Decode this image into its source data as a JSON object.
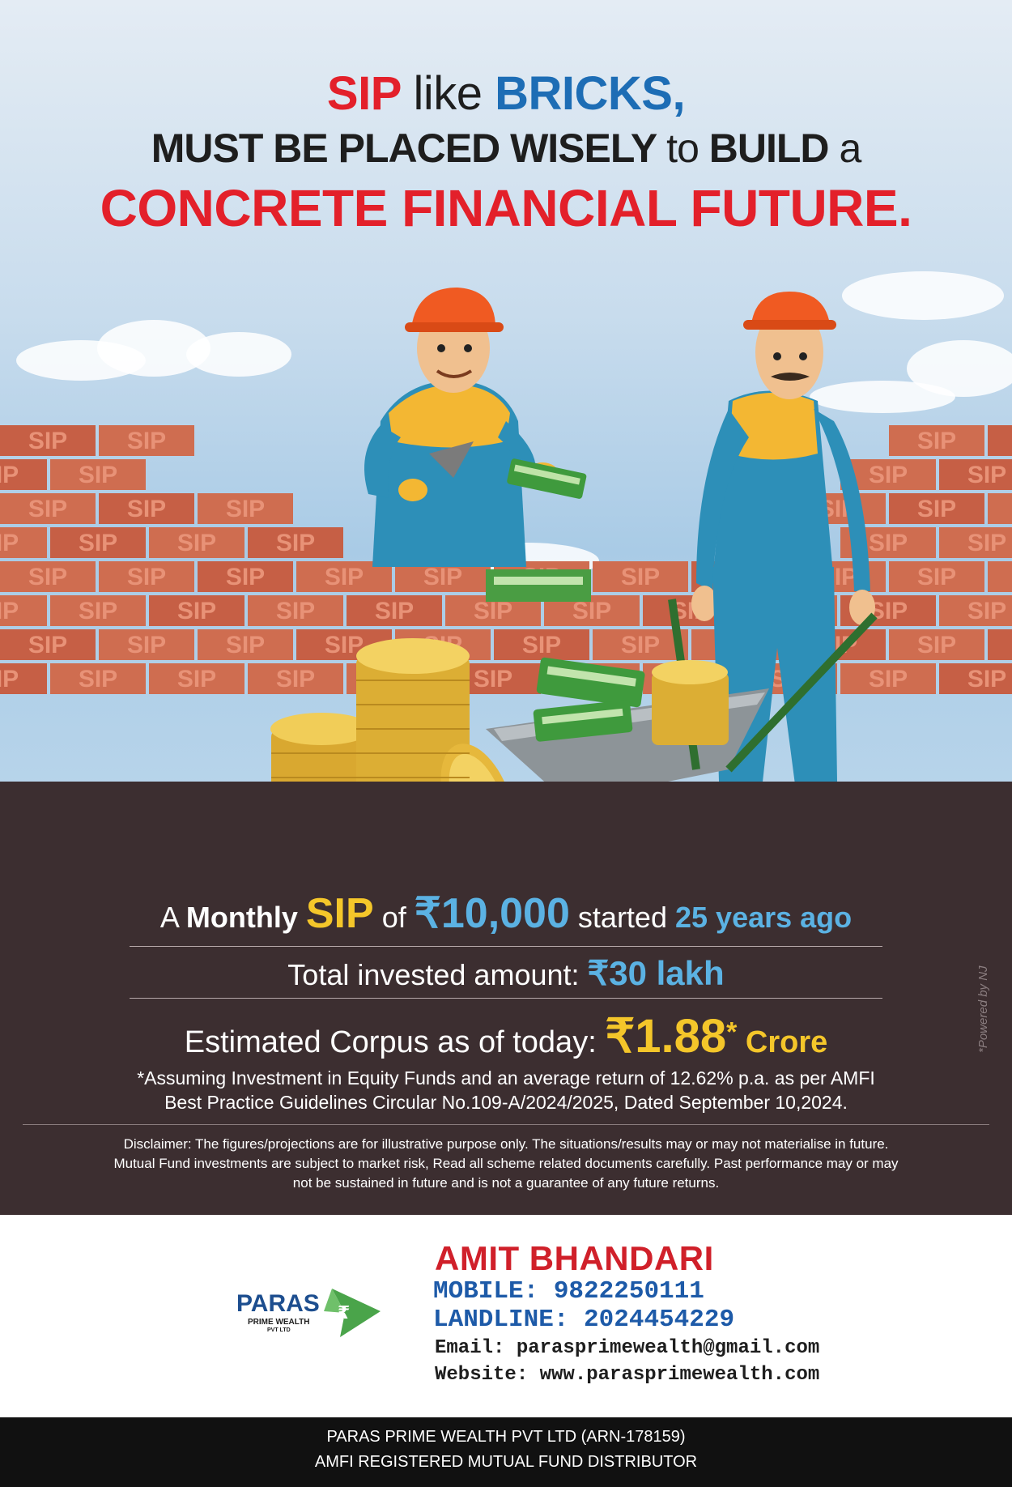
{
  "headline": {
    "line1_a": "SIP",
    "line1_b": "like",
    "line1_c": "BRICKS,",
    "line2_a": "MUST BE PLACED WISELY",
    "line2_b": "to",
    "line2_c": "BUILD",
    "line2_d": "a",
    "line3": "CONCRETE FINANCIAL FUTURE."
  },
  "wall": {
    "brick_text": "SIP"
  },
  "stats": {
    "line1": {
      "a": "A",
      "monthly": "Monthly",
      "sip": "SIP",
      "of": "of",
      "amount": "₹10,000",
      "started": "started",
      "years": "25 years ago"
    },
    "line2": {
      "label": "Total invested amount:",
      "value": "₹30 lakh"
    },
    "line3": {
      "label": "Estimated Corpus as of today:",
      "value": "₹1.88",
      "asterisk": "*",
      "unit": "Crore"
    }
  },
  "assumption": {
    "line1": "*Assuming Investment in Equity Funds and an average return of 12.62% p.a. as per AMFI",
    "line2": "Best Practice  Guidelines Circular No.109-A/2024/2025, Dated September 10,2024."
  },
  "disclaimer": {
    "line1": "Disclaimer: The figures/projections are for illustrative purpose only. The situations/results may or may not materialise in future.",
    "line2": "Mutual Fund investments are subject to market risk, Read all scheme related documents carefully. Past performance may or may",
    "line3": "not be sustained in future and is not a guarantee of any future returns."
  },
  "powered_by": "*Powered by NJ",
  "logo": {
    "name": "PARAS",
    "sub": "PRIME WEALTH",
    "sub2": "PVT LTD"
  },
  "contact": {
    "name": "AMIT BHANDARI",
    "mobile": "MOBILE: 9822250111",
    "landline": "LANDLINE: 2024454229",
    "email": "Email: parasprimewealth@gmail.com",
    "website": "Website: www.parasprimewealth.com"
  },
  "footer": {
    "line1": "PARAS PRIME WEALTH PVT LTD (ARN-178159)",
    "line2": "AMFI REGISTERED MUTUAL FUND DISTRIBUTOR"
  },
  "colors": {
    "red": "#e3202a",
    "blue": "#1d6db5",
    "band": "#3c2e30",
    "gold": "#f4c62a",
    "cyan": "#5bb2e3",
    "brick": "#c9644a"
  }
}
